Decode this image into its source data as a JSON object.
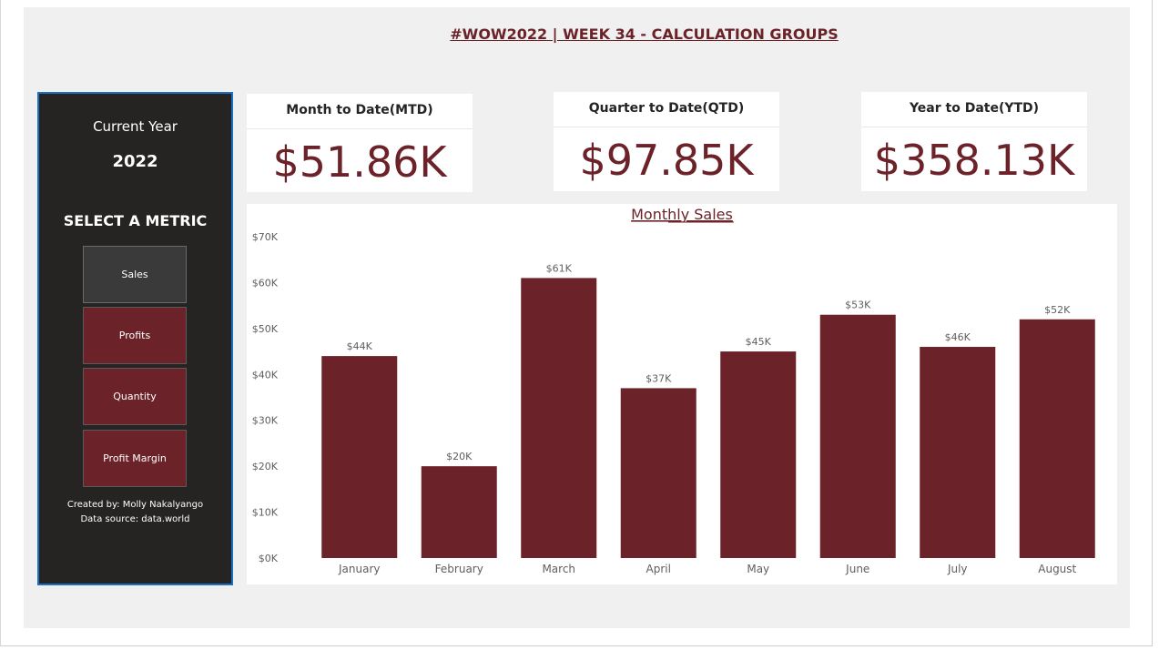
{
  "report": {
    "title": "#WOW2022 | WEEK 34 - CALCULATION GROUPS"
  },
  "sidebar": {
    "current_label": "Current Year",
    "year": "2022",
    "select_label": "SELECT A METRIC",
    "metrics": [
      {
        "label": "Sales",
        "selected": true
      },
      {
        "label": "Profits",
        "selected": false
      },
      {
        "label": "Quantity",
        "selected": false
      },
      {
        "label": "Profit Margin",
        "selected": false
      }
    ],
    "created_by": "Created by:  Molly Nakalyango",
    "data_source": "Data source:  data.world"
  },
  "kpis": [
    {
      "title": "Month to Date(MTD)",
      "value": "$51.86K"
    },
    {
      "title": "Quarter to Date(QTD)",
      "value": "$97.85K"
    },
    {
      "title": "Year to Date(YTD)",
      "value": "$358.13K"
    }
  ],
  "colors": {
    "accent": "#6b2229",
    "sidebar_bg": "#252423",
    "selected_btn": "#3a3a3a",
    "sidebar_border": "#1b6ec2"
  },
  "chart_data": {
    "type": "bar",
    "title": "Monthly Sales",
    "categories": [
      "January",
      "February",
      "March",
      "April",
      "May",
      "June",
      "July",
      "August"
    ],
    "values": [
      44,
      20,
      61,
      37,
      45,
      53,
      46,
      52
    ],
    "data_labels": [
      "$44K",
      "$20K",
      "$61K",
      "$37K",
      "$45K",
      "$53K",
      "$46K",
      "$52K"
    ],
    "ylim": [
      0,
      70
    ],
    "yticks": [
      0,
      10,
      20,
      30,
      40,
      50,
      60,
      70
    ],
    "ytick_labels": [
      "$0K",
      "$10K",
      "$20K",
      "$30K",
      "$40K",
      "$50K",
      "$60K",
      "$70K"
    ],
    "xlabel": "",
    "ylabel": "",
    "grid": false
  }
}
